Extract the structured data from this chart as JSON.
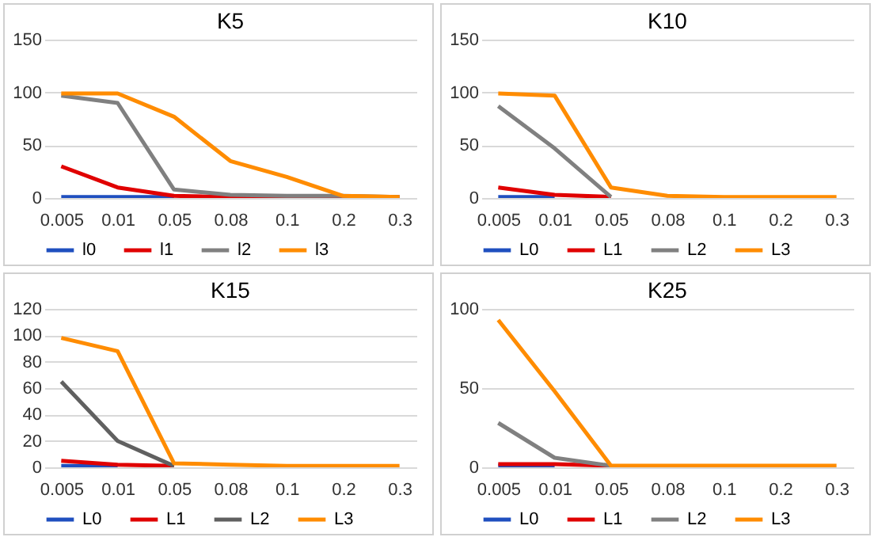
{
  "chart_data": [
    {
      "type": "line",
      "title": "K5",
      "categories": [
        "0.005",
        "0.01",
        "0.05",
        "0.08",
        "0.1",
        "0.2",
        "0.3"
      ],
      "ylim": [
        0,
        150
      ],
      "yticks": [
        0,
        50,
        100,
        150
      ],
      "grid": "y",
      "legend": "bottom",
      "marker": "none",
      "series": [
        {
          "name": "l0",
          "color": "#1f4fbf",
          "values": [
            1,
            1,
            1,
            null,
            null,
            null,
            null
          ]
        },
        {
          "name": "l1",
          "color": "#e00000",
          "values": [
            30,
            10,
            2,
            1,
            1,
            1,
            1
          ]
        },
        {
          "name": "l2",
          "color": "#808080",
          "values": [
            97,
            90,
            8,
            3,
            2,
            2,
            1
          ]
        },
        {
          "name": "l3",
          "color": "#ff8c00",
          "values": [
            99,
            99,
            77,
            35,
            20,
            2,
            1
          ]
        }
      ]
    },
    {
      "type": "line",
      "title": "K10",
      "categories": [
        "0.005",
        "0.01",
        "0.05",
        "0.08",
        "0.1",
        "0.2",
        "0.3"
      ],
      "ylim": [
        0,
        150
      ],
      "yticks": [
        0,
        50,
        100,
        150
      ],
      "grid": "y",
      "legend": "bottom",
      "marker": "none",
      "series": [
        {
          "name": "L0",
          "color": "#1f4fbf",
          "values": [
            1,
            1,
            null,
            null,
            null,
            null,
            null
          ]
        },
        {
          "name": "L1",
          "color": "#e00000",
          "values": [
            10,
            3,
            1,
            null,
            null,
            null,
            null
          ]
        },
        {
          "name": "L2",
          "color": "#808080",
          "values": [
            87,
            47,
            1,
            null,
            null,
            null,
            null
          ]
        },
        {
          "name": "L3",
          "color": "#ff8c00",
          "values": [
            99,
            97,
            10,
            2,
            1,
            1,
            1
          ]
        }
      ]
    },
    {
      "type": "line",
      "title": "K15",
      "categories": [
        "0.005",
        "0.01",
        "0.05",
        "0.08",
        "0.1",
        "0.2",
        "0.3"
      ],
      "ylim": [
        0,
        120
      ],
      "yticks": [
        0,
        20,
        40,
        60,
        80,
        100,
        120
      ],
      "grid": "y",
      "legend": "bottom",
      "marker": "none",
      "series": [
        {
          "name": "L0",
          "color": "#1f4fbf",
          "values": [
            1,
            1,
            null,
            null,
            null,
            null,
            null
          ]
        },
        {
          "name": "L1",
          "color": "#e00000",
          "values": [
            5,
            2,
            1,
            null,
            null,
            null,
            null
          ]
        },
        {
          "name": "L2",
          "color": "#606060",
          "values": [
            65,
            20,
            1,
            null,
            null,
            null,
            null
          ]
        },
        {
          "name": "L3",
          "color": "#ff8c00",
          "values": [
            98,
            88,
            3,
            2,
            1,
            1,
            1
          ]
        }
      ]
    },
    {
      "type": "line",
      "title": "K25",
      "categories": [
        "0.005",
        "0.01",
        "0.05",
        "0.08",
        "0.1",
        "0.2",
        "0.3"
      ],
      "ylim": [
        0,
        100
      ],
      "yticks": [
        0,
        50,
        100
      ],
      "grid": "y",
      "legend": "bottom",
      "marker": "none",
      "series": [
        {
          "name": "L0",
          "color": "#1f4fbf",
          "values": [
            1,
            1,
            null,
            null,
            null,
            null,
            null
          ]
        },
        {
          "name": "L1",
          "color": "#e00000",
          "values": [
            2,
            2,
            1,
            null,
            null,
            null,
            null
          ]
        },
        {
          "name": "L2",
          "color": "#808080",
          "values": [
            28,
            6,
            1,
            null,
            null,
            null,
            null
          ]
        },
        {
          "name": "L3",
          "color": "#ff8c00",
          "values": [
            93,
            48,
            1,
            1,
            1,
            1,
            1
          ]
        }
      ]
    }
  ]
}
